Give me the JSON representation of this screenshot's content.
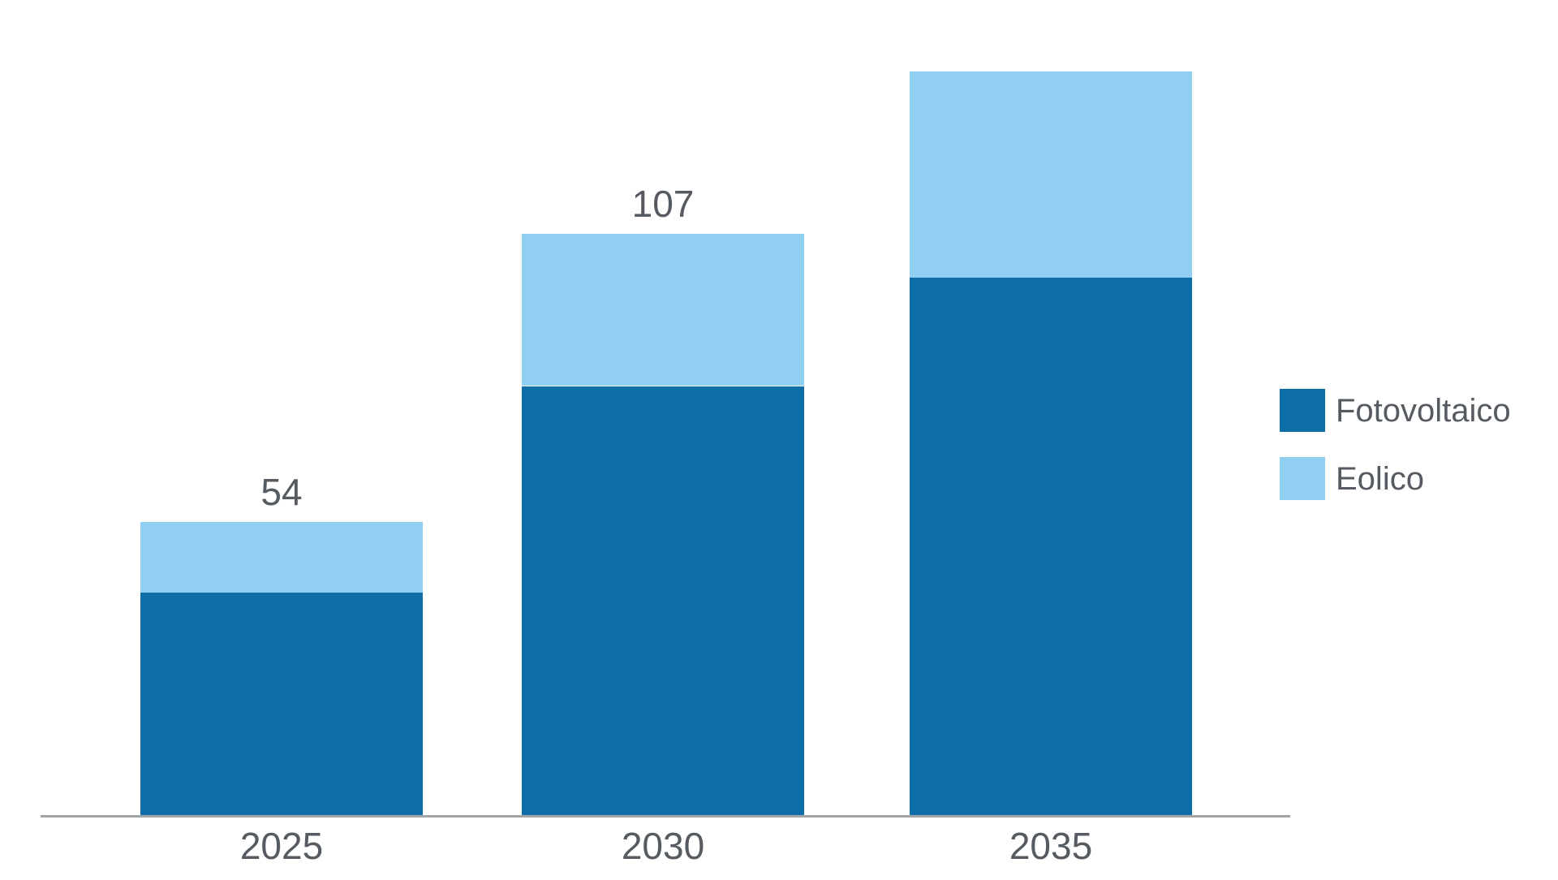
{
  "chart_data": {
    "type": "bar",
    "stacked": true,
    "title": "",
    "xlabel": "",
    "ylabel": "",
    "categories": [
      "2025",
      "2030",
      "2035"
    ],
    "series": [
      {
        "name": "Fotovoltaico",
        "color": "#0e6fa8",
        "values": [
          41,
          79,
          99
        ]
      },
      {
        "name": "Eolico",
        "color": "#90cff2",
        "values": [
          13,
          28,
          38
        ]
      }
    ],
    "totals": [
      54,
      107,
      137
    ],
    "total_labels": [
      "54",
      "107",
      ""
    ],
    "ylim": [
      0,
      140
    ],
    "grid": false,
    "legend_position": "right",
    "legend": [
      "Fotovoltaico",
      "Eolico"
    ]
  },
  "colors": {
    "text": "#565b61",
    "axis_line": "#8b9095",
    "background": "#ffffff",
    "fotovoltaico": "#0e6fa8",
    "eolico": "#90cff2"
  }
}
